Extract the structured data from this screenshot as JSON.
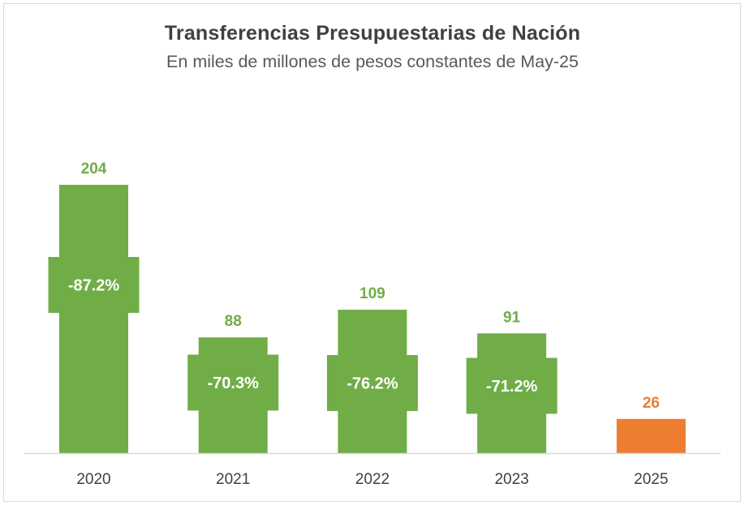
{
  "chart_data": {
    "type": "bar",
    "title": "Transferencias Presupuestarias de Nación",
    "subtitle": "En miles de millones de pesos constantes de May-25",
    "xlabel": "",
    "ylabel": "",
    "categories": [
      "2020",
      "2021",
      "2022",
      "2023",
      "2025"
    ],
    "values": [
      204,
      88,
      109,
      91,
      26
    ],
    "data_labels": [
      "204",
      "88",
      "109",
      "91",
      "26"
    ],
    "change_vs_2025_labels": [
      "-87.2%",
      "-70.3%",
      "-76.2%",
      "-71.2%",
      null
    ],
    "bar_colors": [
      "#70ad47",
      "#70ad47",
      "#70ad47",
      "#70ad47",
      "#ed7d31"
    ],
    "ylim": [
      0,
      204
    ],
    "grid": false,
    "legend": "none",
    "y_axis_visible": false
  },
  "colors": {
    "positive": "#70ad47",
    "highlight": "#ed7d31",
    "axis": "#d9d9d9",
    "text": "#404040"
  }
}
